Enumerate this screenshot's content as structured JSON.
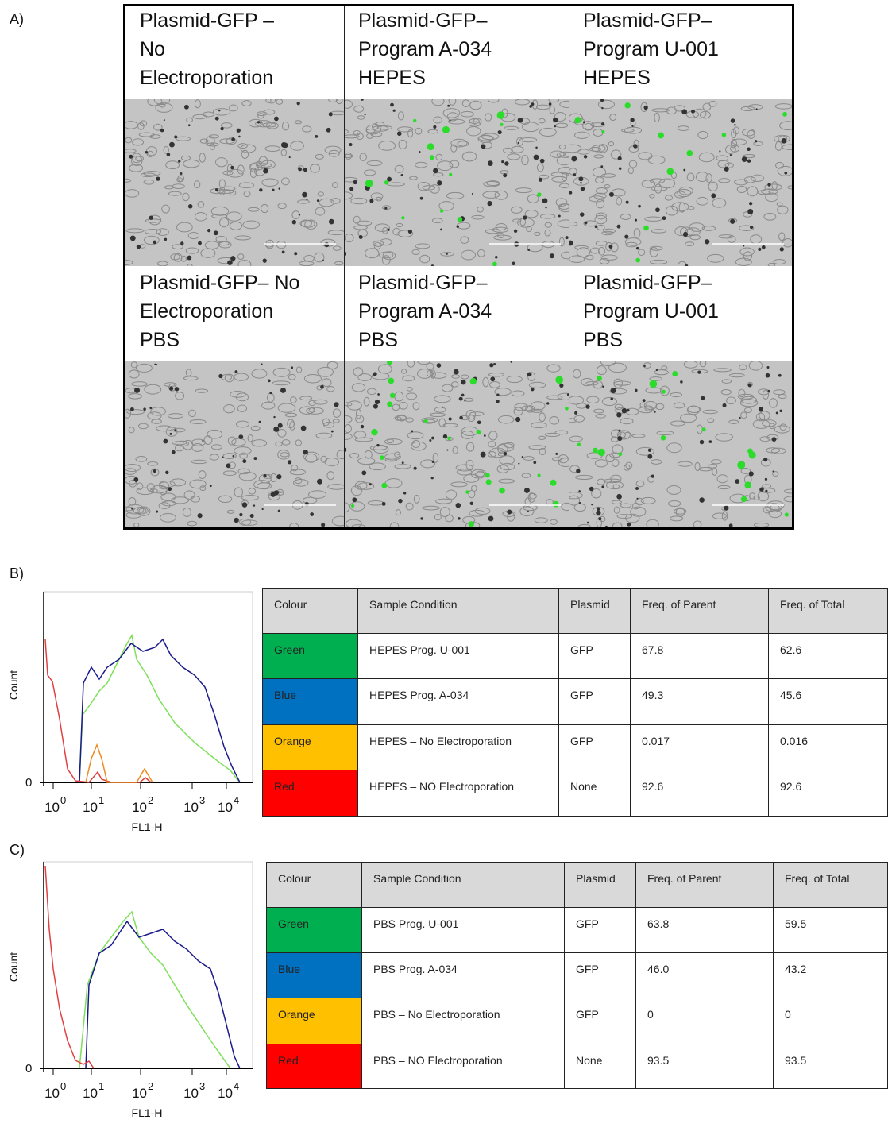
{
  "panel_a": {
    "label": "A)",
    "captions": [
      [
        "Plasmid-GFP –",
        "No",
        "Electroporation"
      ],
      [
        "Plasmid-GFP–",
        "Program A-034",
        "HEPES"
      ],
      [
        "Plasmid-GFP–",
        "Program U-001",
        "HEPES"
      ],
      [
        "Plasmid-GFP– No",
        "Electroporation",
        "PBS"
      ],
      [
        "Plasmid-GFP–",
        "Program A-034",
        "PBS"
      ],
      [
        "Plasmid-GFP–",
        "Program U-001",
        "PBS"
      ]
    ]
  },
  "panel_b": {
    "label": "B)",
    "histogram": {
      "y_label": "Count",
      "y_zero": "0",
      "x_label": "FL1-H",
      "x_ticks": [
        {
          "base": "10",
          "exp": "0"
        },
        {
          "base": "10",
          "exp": "1"
        },
        {
          "base": "10",
          "exp": "2"
        },
        {
          "base": "10",
          "exp": "3"
        },
        {
          "base": "10",
          "exp": "4"
        }
      ]
    },
    "table": {
      "header": [
        "Colour",
        "Sample Condition",
        "Plasmid",
        "Freq. of Parent",
        "Freq. of Total"
      ],
      "rows": [
        {
          "color": "#00b050",
          "cells": [
            "Green",
            "HEPES Prog.  U-001",
            "GFP",
            "67.8",
            "62.6"
          ]
        },
        {
          "color": "#0070c0",
          "cells": [
            "Blue",
            "HEPES Prog.  A-034",
            "GFP",
            "49.3",
            "45.6"
          ]
        },
        {
          "color": "#ffc000",
          "cells": [
            "Orange",
            "HEPES – No Electroporation",
            "GFP",
            "0.017",
            "0.016"
          ]
        },
        {
          "color": "#ff0000",
          "cells": [
            "Red",
            "HEPES – NO Electroporation",
            "None",
            "92.6",
            "92.6"
          ]
        }
      ]
    }
  },
  "panel_c": {
    "label": "C)",
    "histogram": {
      "y_label": "Count",
      "y_zero": "0",
      "x_label": "FL1-H",
      "x_ticks": [
        {
          "base": "10",
          "exp": "0"
        },
        {
          "base": "10",
          "exp": "1"
        },
        {
          "base": "10",
          "exp": "2"
        },
        {
          "base": "10",
          "exp": "3"
        },
        {
          "base": "10",
          "exp": "4"
        }
      ]
    },
    "table": {
      "header": [
        "Colour",
        "Sample Condition",
        "Plasmid",
        "Freq. of Parent",
        "Freq. of Total"
      ],
      "rows": [
        {
          "color": "#00b050",
          "cells": [
            "Green",
            "PBS Prog.  U-001",
            "GFP",
            "63.8",
            "59.5"
          ]
        },
        {
          "color": "#0070c0",
          "cells": [
            "Blue",
            "PBS Prog.  A-034",
            "GFP",
            "46.0",
            "43.2"
          ]
        },
        {
          "color": "#ffc000",
          "cells": [
            "Orange",
            "PBS – No Electroporation",
            "GFP",
            "0",
            "0"
          ]
        },
        {
          "color": "#ff0000",
          "cells": [
            "Red",
            "PBS – NO Electroporation",
            "None",
            "93.5",
            "93.5"
          ]
        }
      ]
    }
  }
}
